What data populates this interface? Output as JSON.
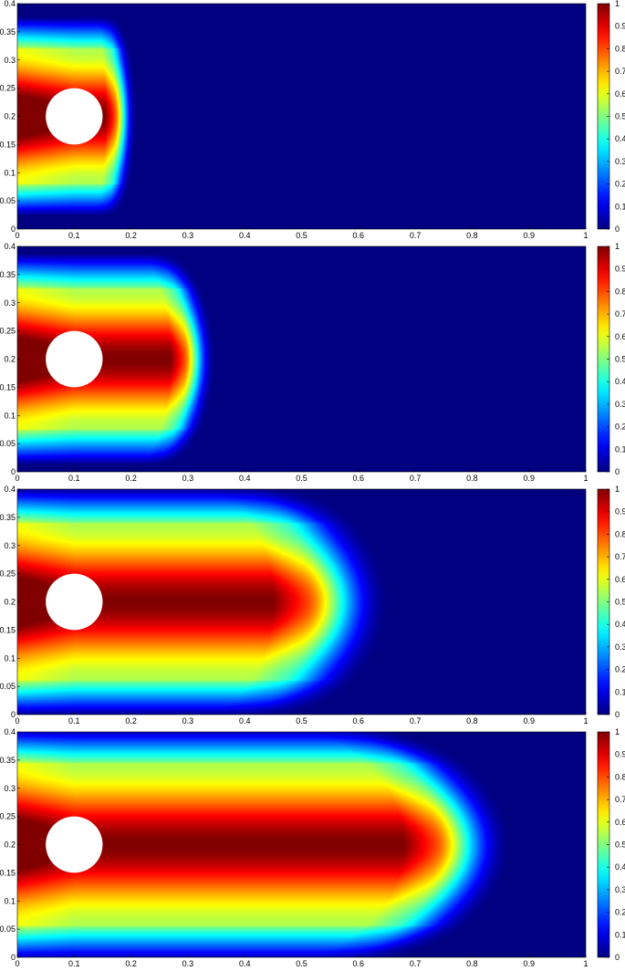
{
  "chart_data": [
    {
      "type": "heatmap",
      "title": "",
      "xlabel": "",
      "ylabel": "",
      "xlim": [
        0,
        1
      ],
      "ylim": [
        0,
        0.4
      ],
      "x_ticks": [
        "0",
        "0.1",
        "0.2",
        "0.3",
        "0.4",
        "0.5",
        "0.6",
        "0.7",
        "0.8",
        "0.9",
        "1"
      ],
      "y_ticks": [
        "0",
        "0.05",
        "0.1",
        "0.15",
        "0.2",
        "0.25",
        "0.3",
        "0.35",
        "0.4"
      ],
      "colorbar": {
        "range": [
          0,
          1
        ],
        "ticks": [
          "0",
          "0.1",
          "0.2",
          "0.3",
          "0.4",
          "0.5",
          "0.6",
          "0.7",
          "0.8",
          "0.9",
          "1"
        ],
        "colormap": "jet"
      },
      "obstacle": {
        "shape": "circle",
        "center": [
          0.1,
          0.2
        ],
        "radius": 0.05
      },
      "field_extent": {
        "front_x_value_0_5": 0.155,
        "front_x_value_0_1": 0.19,
        "side_y_value_0_5": 0.08,
        "side_y_value_0_1": 0.035
      }
    },
    {
      "type": "heatmap",
      "title": "",
      "xlabel": "",
      "ylabel": "",
      "xlim": [
        0,
        1
      ],
      "ylim": [
        0,
        0.4
      ],
      "x_ticks": [
        "0",
        "0.1",
        "0.2",
        "0.3",
        "0.4",
        "0.5",
        "0.6",
        "0.7",
        "0.8",
        "0.9",
        "1"
      ],
      "y_ticks": [
        "0",
        "0.05",
        "0.1",
        "0.15",
        "0.2",
        "0.25",
        "0.3",
        "0.35",
        "0.4"
      ],
      "colorbar": {
        "range": [
          0,
          1
        ],
        "ticks": [
          "0",
          "0.1",
          "0.2",
          "0.3",
          "0.4",
          "0.5",
          "0.6",
          "0.7",
          "0.8",
          "0.9",
          "1"
        ],
        "colormap": "jet"
      },
      "obstacle": {
        "shape": "circle",
        "center": [
          0.1,
          0.2
        ],
        "radius": 0.05
      },
      "field_extent": {
        "front_x_value_0_5": 0.27,
        "front_x_value_0_1": 0.32,
        "side_y_value_0_5": 0.075,
        "side_y_value_0_1": 0.025
      }
    },
    {
      "type": "heatmap",
      "title": "",
      "xlabel": "",
      "ylabel": "",
      "xlim": [
        0,
        1
      ],
      "ylim": [
        0,
        0.4
      ],
      "x_ticks": [
        "0",
        "0.1",
        "0.2",
        "0.3",
        "0.4",
        "0.5",
        "0.6",
        "0.7",
        "0.8",
        "0.9",
        "1"
      ],
      "y_ticks": [
        "0",
        "0.05",
        "0.1",
        "0.15",
        "0.2",
        "0.25",
        "0.3",
        "0.35",
        "0.4"
      ],
      "colorbar": {
        "range": [
          0,
          1
        ],
        "ticks": [
          "0",
          "0.1",
          "0.2",
          "0.3",
          "0.4",
          "0.5",
          "0.6",
          "0.7",
          "0.8",
          "0.9",
          "1"
        ],
        "colormap": "jet"
      },
      "obstacle": {
        "shape": "circle",
        "center": [
          0.1,
          0.2
        ],
        "radius": 0.05
      },
      "field_extent": {
        "front_x_value_0_5": 0.45,
        "front_x_value_0_1": 0.58,
        "side_y_value_0_5": 0.06,
        "side_y_value_0_1": 0.01
      }
    },
    {
      "type": "heatmap",
      "title": "",
      "xlabel": "",
      "ylabel": "",
      "xlim": [
        0,
        1
      ],
      "ylim": [
        0,
        0.4
      ],
      "x_ticks": [
        "0",
        "0.1",
        "0.2",
        "0.3",
        "0.4",
        "0.5",
        "0.6",
        "0.7",
        "0.8",
        "0.9",
        "1"
      ],
      "y_ticks": [
        "0",
        "0.05",
        "0.1",
        "0.15",
        "0.2",
        "0.25",
        "0.3",
        "0.35",
        "0.4"
      ],
      "colorbar": {
        "range": [
          0,
          1
        ],
        "ticks": [
          "0",
          "0.1",
          "0.2",
          "0.3",
          "0.4",
          "0.5",
          "0.6",
          "0.7",
          "0.8",
          "0.9",
          "1"
        ],
        "colormap": "jet"
      },
      "obstacle": {
        "shape": "circle",
        "center": [
          0.1,
          0.2
        ],
        "radius": 0.05
      },
      "field_extent": {
        "front_x_value_0_5": 0.68,
        "front_x_value_0_1": 0.8,
        "side_y_value_0_5": 0.055,
        "side_y_value_0_1": 0.005
      }
    }
  ]
}
